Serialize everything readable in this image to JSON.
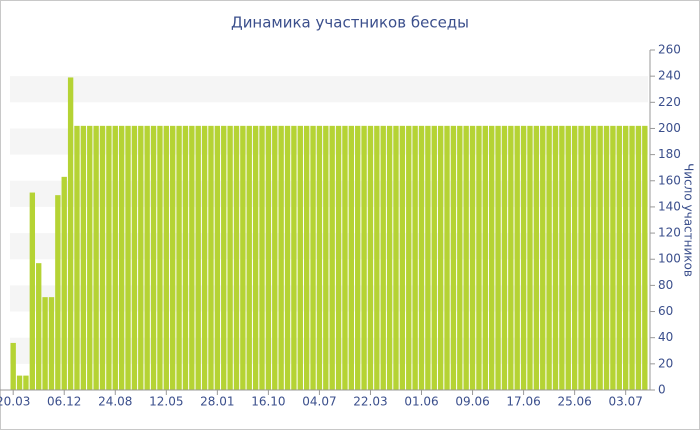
{
  "chart_data": {
    "type": "bar",
    "title": "Динамика участников беседы",
    "y_label": "Число участников",
    "categories": [
      "20.03",
      null,
      null,
      null,
      null,
      null,
      null,
      null,
      "06.12",
      null,
      null,
      null,
      null,
      null,
      null,
      null,
      "24.08",
      null,
      null,
      null,
      null,
      null,
      null,
      null,
      "12.05",
      null,
      null,
      null,
      null,
      null,
      null,
      null,
      "28.01",
      null,
      null,
      null,
      null,
      null,
      null,
      null,
      "16.10",
      null,
      null,
      null,
      null,
      null,
      null,
      null,
      "04.07",
      null,
      null,
      null,
      null,
      null,
      null,
      null,
      "22.03",
      null,
      null,
      null,
      null,
      null,
      null,
      null,
      "01.06",
      null,
      null,
      null,
      null,
      null,
      null,
      null,
      "09.06",
      null,
      null,
      null,
      null,
      null,
      null,
      null,
      "17.06",
      null,
      null,
      null,
      null,
      null,
      null,
      null,
      "25.06",
      null,
      null,
      null,
      null,
      null,
      null,
      null,
      "03.07",
      null,
      null,
      null
    ],
    "values": [
      36,
      11,
      11,
      151,
      97,
      71,
      71,
      149,
      163,
      239,
      202,
      202,
      202,
      202,
      202,
      202,
      202,
      202,
      202,
      202,
      202,
      202,
      202,
      202,
      202,
      202,
      202,
      202,
      202,
      202,
      202,
      202,
      202,
      202,
      202,
      202,
      202,
      202,
      202,
      202,
      202,
      202,
      202,
      202,
      202,
      202,
      202,
      202,
      202,
      202,
      202,
      202,
      202,
      202,
      202,
      202,
      202,
      202,
      202,
      202,
      202,
      202,
      202,
      202,
      202,
      202,
      202,
      202,
      202,
      202,
      202,
      202,
      202,
      202,
      202,
      202,
      202,
      202,
      202,
      202,
      202,
      202,
      202,
      202,
      202,
      202,
      202,
      202,
      202,
      202,
      202,
      202,
      202,
      202,
      202,
      202,
      202,
      202,
      202,
      202
    ],
    "color": "#b5d334",
    "ylim": [
      0,
      260
    ],
    "yticks": [
      0,
      20,
      40,
      60,
      80,
      100,
      120,
      140,
      160,
      180,
      200,
      220,
      240,
      260
    ],
    "grid_bands": true,
    "y_axis_side": "right"
  }
}
